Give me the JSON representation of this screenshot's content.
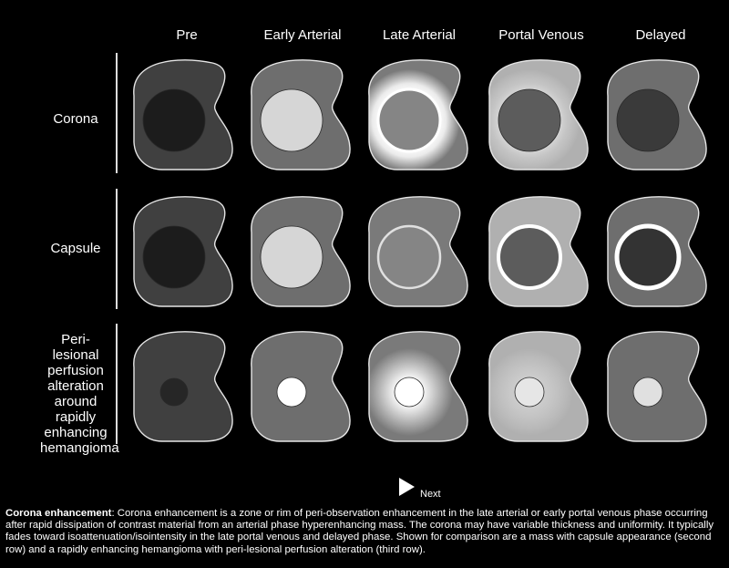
{
  "columns": [
    "Pre",
    "Early Arterial",
    "Late Arterial",
    "Portal Venous",
    "Delayed"
  ],
  "rows": [
    {
      "label_lines": [
        "Corona"
      ]
    },
    {
      "label_lines": [
        "Capsule"
      ]
    },
    {
      "label_lines": [
        "Peri-lesional",
        "perfusion",
        "alteration",
        "around",
        "rapidly",
        "enhancing",
        "hemangioma"
      ]
    }
  ],
  "cells": [
    [
      {
        "liver": "#404040",
        "lesion": "#1c1c1c",
        "size": "large",
        "ring": null,
        "glow": null
      },
      {
        "liver": "#6e6e6e",
        "lesion": "#d6d6d6",
        "size": "large",
        "ring": null,
        "glow": null
      },
      {
        "liver": "#7a7a7a",
        "lesion": "#858585",
        "size": "large",
        "ring": "#ffffff",
        "glow": "corona"
      },
      {
        "liver": "#b0b0b0",
        "lesion": "#5c5c5c",
        "size": "large",
        "ring": null,
        "glow": "corona-faint"
      },
      {
        "liver": "#6e6e6e",
        "lesion": "#3a3a3a",
        "size": "large",
        "ring": null,
        "glow": null
      }
    ],
    [
      {
        "liver": "#404040",
        "lesion": "#1c1c1c",
        "size": "large",
        "ring": null,
        "glow": null
      },
      {
        "liver": "#6e6e6e",
        "lesion": "#d6d6d6",
        "size": "large",
        "ring": null,
        "glow": null
      },
      {
        "liver": "#7a7a7a",
        "lesion": "#858585",
        "size": "large",
        "ring": "#e0e0e0",
        "glow": null
      },
      {
        "liver": "#b0b0b0",
        "lesion": "#5c5c5c",
        "size": "large",
        "ring": "#ffffff",
        "glow": null
      },
      {
        "liver": "#6e6e6e",
        "lesion": "#333333",
        "size": "large",
        "ring": "#ffffff",
        "glow": null
      }
    ],
    [
      {
        "liver": "#404040",
        "lesion": "#262626",
        "size": "small",
        "ring": null,
        "glow": null
      },
      {
        "liver": "#6e6e6e",
        "lesion": "#ffffff",
        "size": "small",
        "ring": null,
        "glow": null
      },
      {
        "liver": "#7a7a7a",
        "lesion": "#ffffff",
        "size": "small",
        "ring": null,
        "glow": "perfusion"
      },
      {
        "liver": "#b0b0b0",
        "lesion": "#e6e6e6",
        "size": "small",
        "ring": null,
        "glow": "perfusion-faint"
      },
      {
        "liver": "#6e6e6e",
        "lesion": "#e0e0e0",
        "size": "small",
        "ring": null,
        "glow": null
      }
    ]
  ],
  "next_label": "Next",
  "caption": {
    "title": "Corona enhancement",
    "body": ": Corona enhancement is a zone or rim of peri-observation enhancement in the late arterial or early portal venous phase occurring after rapid dissipation of contrast material from an arterial phase hyperenhancing mass. The corona may have variable thickness and uniformity. It typically fades toward isoattenuation/isointensity in the late portal venous and delayed phase. Shown for comparison are a mass with capsule appearance (second row) and a rapidly enhancing hemangioma with peri-lesional perfusion alteration (third row)."
  }
}
